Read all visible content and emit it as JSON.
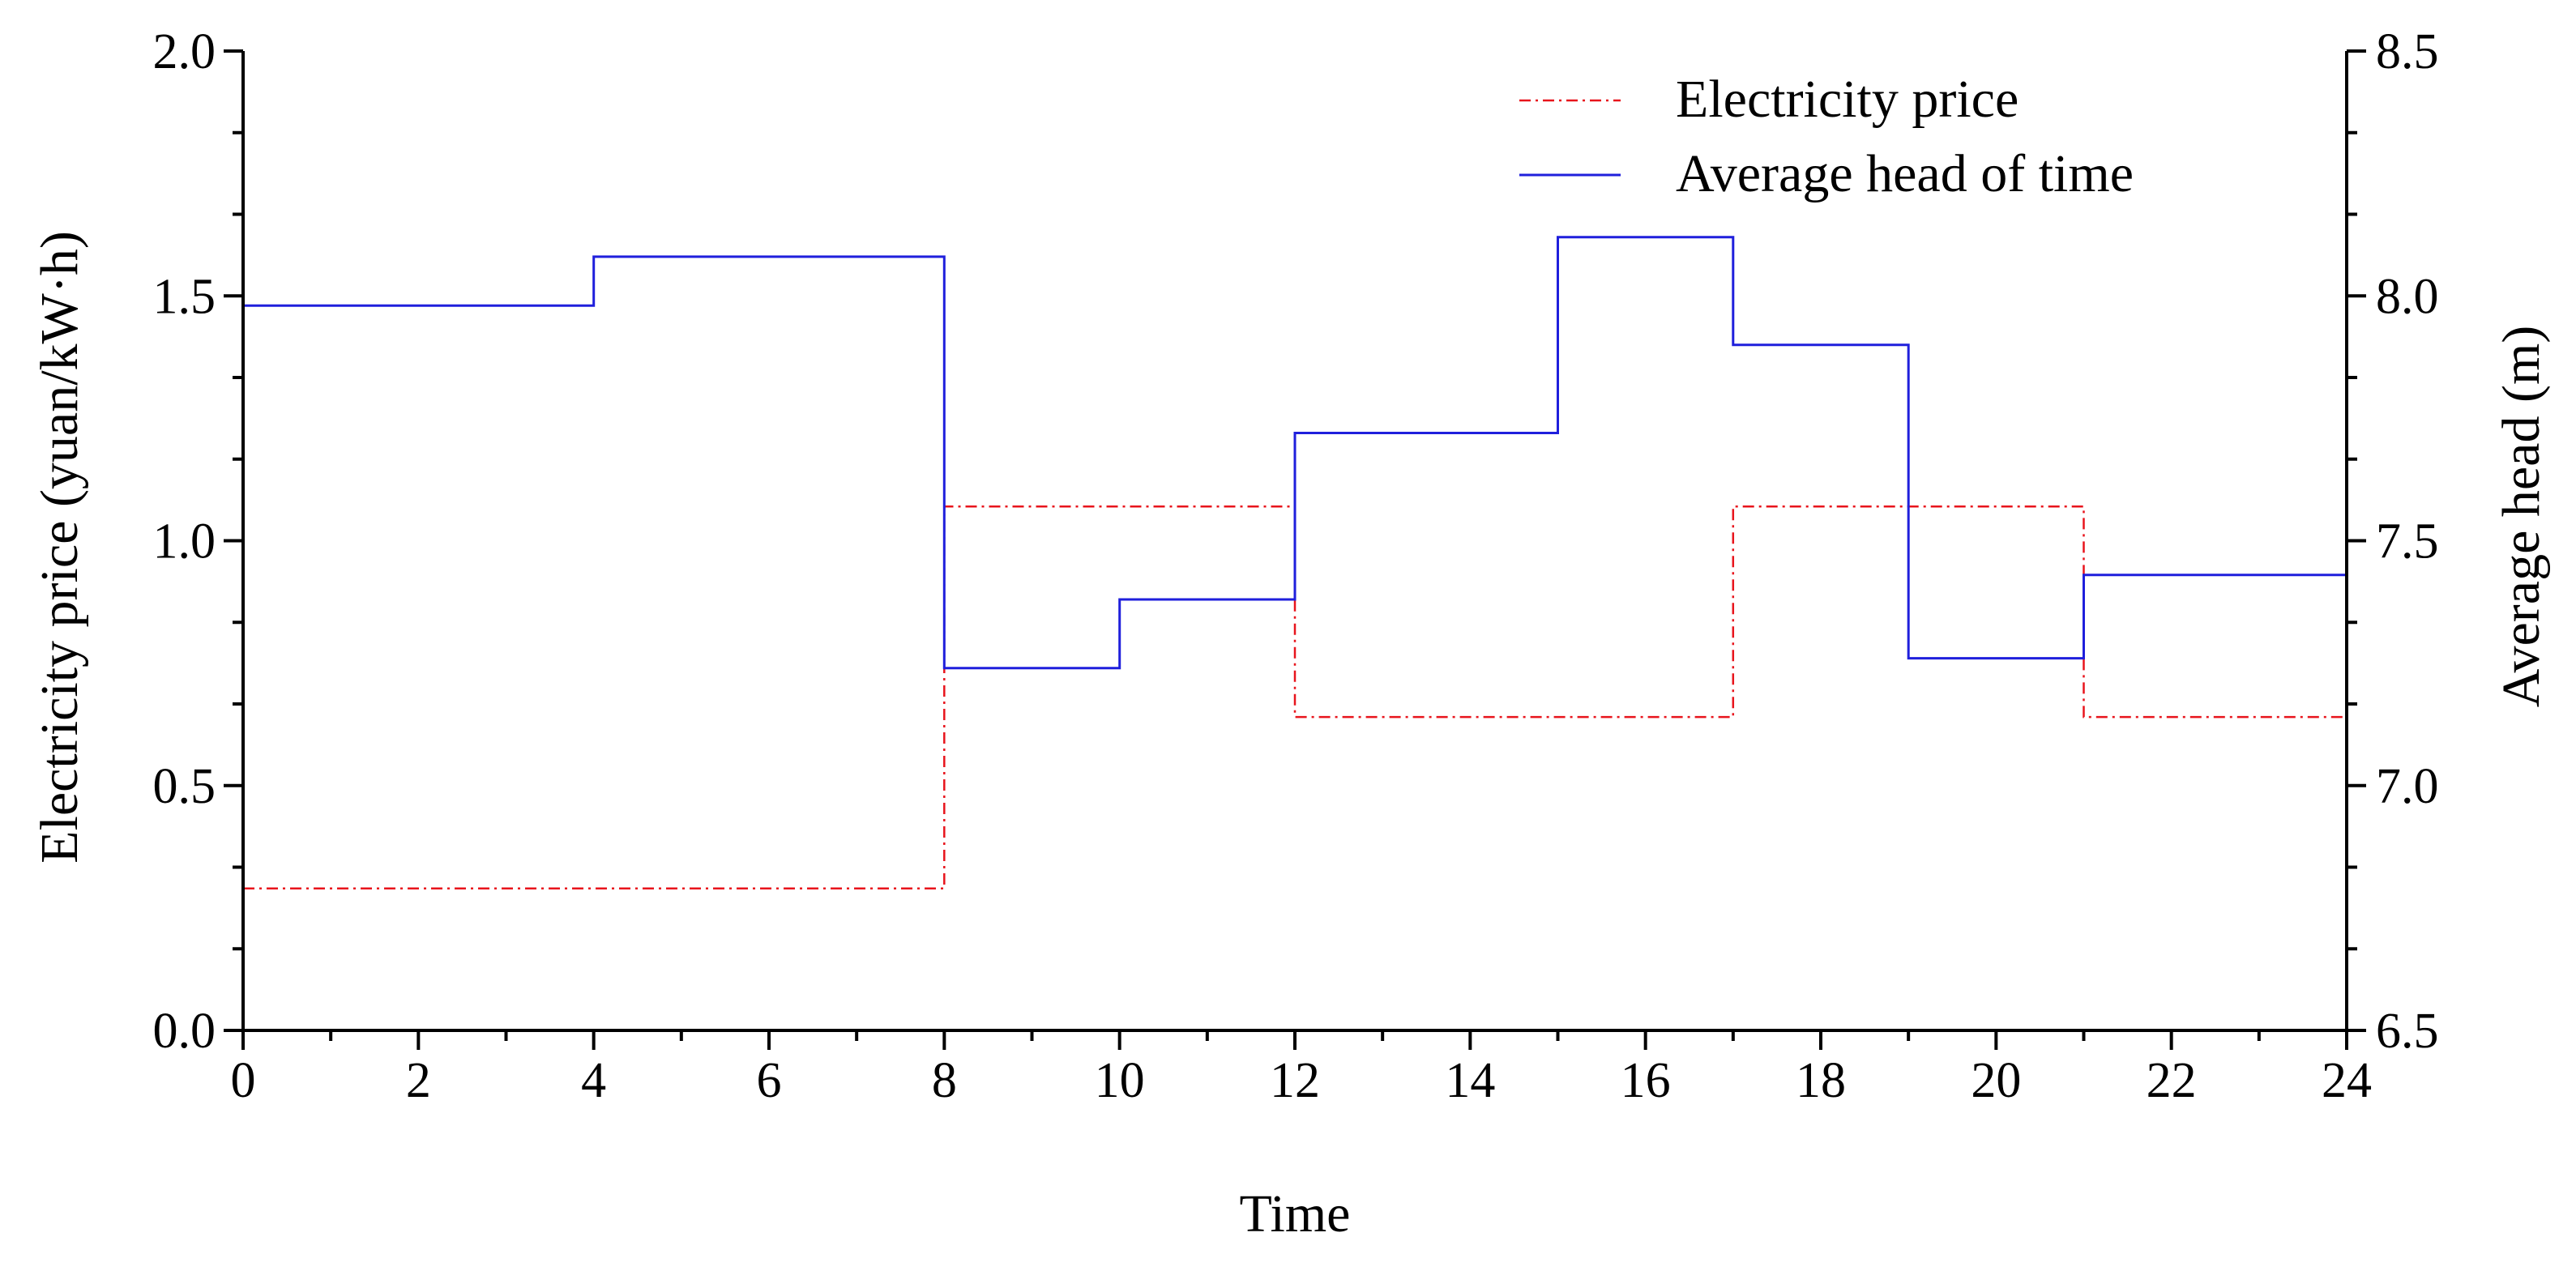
{
  "chart_data": {
    "type": "line",
    "step": true,
    "title": "",
    "xlabel": "Time",
    "ylabel_left": "Electricity price (yuan/kW·h)",
    "ylabel_right": "Average head (m)",
    "xlim": [
      0,
      24
    ],
    "ylim_left": [
      0.0,
      2.0
    ],
    "ylim_right": [
      6.5,
      8.5
    ],
    "x_ticks": [
      "0",
      "2",
      "4",
      "6",
      "8",
      "10",
      "12",
      "14",
      "16",
      "18",
      "20",
      "22",
      "24"
    ],
    "y_left_ticks": [
      "0.0",
      "0.5",
      "1.0",
      "1.5",
      "2.0"
    ],
    "y_right_ticks": [
      "6.5",
      "7.0",
      "7.5",
      "8.0",
      "8.5"
    ],
    "grid": false,
    "legend_position": "top-right",
    "series": [
      {
        "name": "Electricity price",
        "axis": "left",
        "color": "#e8141c",
        "style": "dash-dot",
        "breaks": [
          0,
          8,
          12,
          17,
          21,
          24
        ],
        "values": [
          0.29,
          1.07,
          0.64,
          1.07,
          0.64
        ]
      },
      {
        "name": "Average head of time",
        "axis": "right",
        "color": "#1f1fdc",
        "style": "solid",
        "breaks": [
          0,
          4,
          8,
          10,
          12,
          15,
          17,
          19,
          21,
          24
        ],
        "values": [
          7.98,
          8.08,
          7.24,
          7.38,
          7.72,
          8.12,
          7.9,
          7.26,
          7.43
        ]
      }
    ]
  }
}
